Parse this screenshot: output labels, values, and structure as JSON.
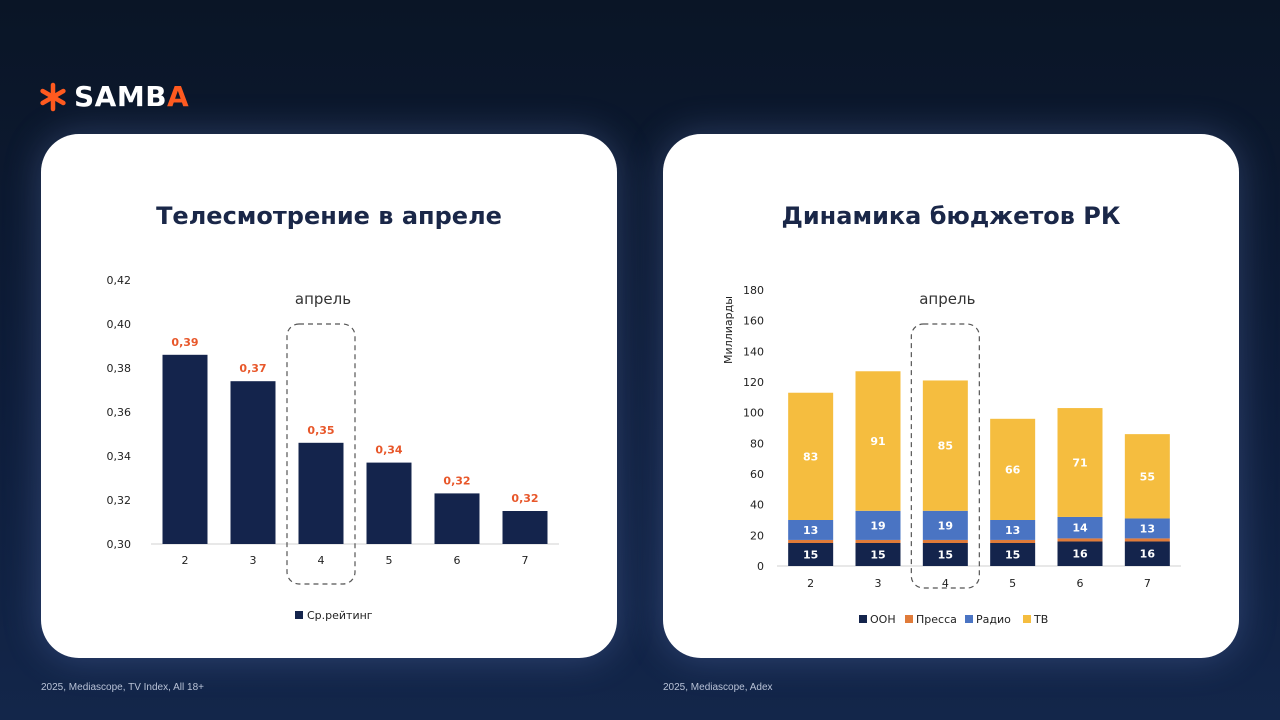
{
  "logo": {
    "text_main": "SAMB",
    "text_accent": "A",
    "accent_color": "#ff5a1f"
  },
  "footnotes": {
    "left": "2025, Mediascope, TV Index, All 18+",
    "right": "2025, Mediascope, Adex"
  },
  "chart_data": [
    {
      "type": "bar",
      "title": "Телесмотрение в апреле",
      "categories": [
        "2",
        "3",
        "4",
        "5",
        "6",
        "7"
      ],
      "series": [
        {
          "name": "Ср.рейтинг",
          "values": [
            0.386,
            0.374,
            0.346,
            0.337,
            0.323,
            0.315
          ],
          "color": "#14244c"
        }
      ],
      "data_labels": [
        "0,39",
        "0,37",
        "0,35",
        "0,34",
        "0,32",
        "0,32"
      ],
      "data_label_color": "#e8572a",
      "ylim": [
        0.3,
        0.42
      ],
      "yticks": [
        "0,30",
        "0,32",
        "0,34",
        "0,36",
        "0,38",
        "0,40",
        "0,42"
      ],
      "highlight": {
        "category": "4",
        "label": "апрель"
      },
      "legend_position": "bottom",
      "grid": false
    },
    {
      "type": "bar",
      "stacked": true,
      "title": "Динамика бюджетов РК",
      "ylabel": "Миллиарды",
      "categories": [
        "2",
        "3",
        "4",
        "5",
        "6",
        "7"
      ],
      "series": [
        {
          "name": "ООН",
          "values": [
            15,
            15,
            15,
            15,
            16,
            16
          ],
          "labels": [
            "15",
            "15",
            "15",
            "15",
            "16",
            "16"
          ],
          "color": "#14244c"
        },
        {
          "name": "Пресса",
          "values": [
            2,
            2,
            2,
            2,
            2,
            2
          ],
          "labels": [
            "",
            "",
            "",
            "",
            "",
            ""
          ],
          "color": "#e07b39"
        },
        {
          "name": "Радио",
          "values": [
            13,
            19,
            19,
            13,
            14,
            13
          ],
          "labels": [
            "13",
            "19",
            "19",
            "13",
            "14",
            "13"
          ],
          "color": "#4a74c3"
        },
        {
          "name": "ТВ",
          "values": [
            83,
            91,
            85,
            66,
            71,
            55
          ],
          "labels": [
            "83",
            "91",
            "85",
            "66",
            "71",
            "55"
          ],
          "color": "#f5bd3f"
        }
      ],
      "ylim": [
        0,
        180
      ],
      "yticks": [
        "0",
        "20",
        "40",
        "60",
        "80",
        "100",
        "120",
        "140",
        "160",
        "180"
      ],
      "highlight": {
        "category": "4",
        "label": "апрель"
      },
      "legend_position": "bottom",
      "grid": false
    }
  ]
}
